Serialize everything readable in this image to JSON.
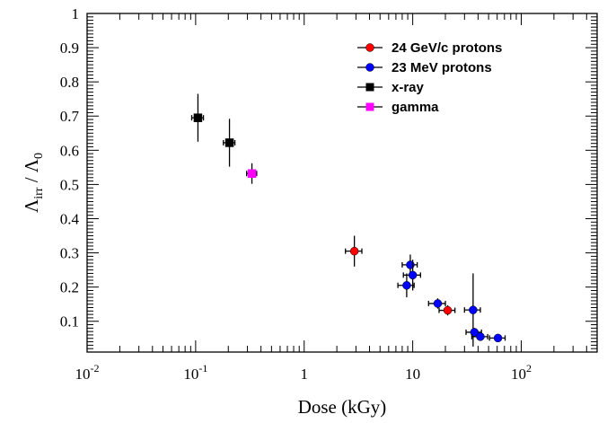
{
  "chart_data": {
    "type": "scatter",
    "xlabel": "Dose (kGy)",
    "ylabel": {
      "main": "Λ",
      "sub1": "irr",
      "mid": " / Λ",
      "sub2": "0"
    },
    "x_scale": "log",
    "xlim": [
      0.01,
      500
    ],
    "ylim": [
      0.01,
      1.0
    ],
    "x_ticks": [
      {
        "value": 0.01,
        "base": "10",
        "exp": "-2"
      },
      {
        "value": 0.1,
        "base": "10",
        "exp": "-1"
      },
      {
        "value": 1,
        "base": "1",
        "exp": ""
      },
      {
        "value": 10,
        "base": "10",
        "exp": ""
      },
      {
        "value": 100,
        "base": "10",
        "exp": "2"
      }
    ],
    "y_ticks": [
      {
        "value": 0.1,
        "label": "0.1"
      },
      {
        "value": 0.2,
        "label": "0.2"
      },
      {
        "value": 0.3,
        "label": "0.3"
      },
      {
        "value": 0.4,
        "label": "0.4"
      },
      {
        "value": 0.5,
        "label": "0.5"
      },
      {
        "value": 0.6,
        "label": "0.6"
      },
      {
        "value": 0.7,
        "label": "0.7"
      },
      {
        "value": 0.8,
        "label": "0.8"
      },
      {
        "value": 0.9,
        "label": "0.9"
      },
      {
        "value": 1.0,
        "label": "1"
      }
    ],
    "grid": false,
    "legend_position": "top-right",
    "series": [
      {
        "name": "24 GeV/c protons",
        "color": "#ff0000",
        "marker": "circle",
        "points": [
          {
            "x": 2.9,
            "y": 0.305,
            "xerr": 0.5,
            "yerr": 0.045
          },
          {
            "x": 21,
            "y": 0.132,
            "xerr": 3.5,
            "yerr": 0.015
          }
        ]
      },
      {
        "name": "23 MeV protons",
        "color": "#0000ff",
        "marker": "circle",
        "points": [
          {
            "x": 8.8,
            "y": 0.205,
            "xerr": 1.5,
            "yerr": 0.035
          },
          {
            "x": 9.5,
            "y": 0.265,
            "xerr": 1.5,
            "yerr": 0.03
          },
          {
            "x": 10,
            "y": 0.235,
            "xerr": 1.8,
            "yerr": 0.045
          },
          {
            "x": 17,
            "y": 0.152,
            "xerr": 3,
            "yerr": 0.015
          },
          {
            "x": 36,
            "y": 0.133,
            "xerr": 6,
            "yerr": 0.107
          },
          {
            "x": 37,
            "y": 0.068,
            "xerr": 6,
            "yerr": 0.012
          },
          {
            "x": 42,
            "y": 0.055,
            "xerr": 7,
            "yerr": 0.01
          },
          {
            "x": 61,
            "y": 0.051,
            "xerr": 10,
            "yerr": 0.008
          }
        ]
      },
      {
        "name": "x-ray",
        "color": "#000000",
        "marker": "square",
        "points": [
          {
            "x": 0.105,
            "y": 0.695,
            "xerr": 0.013,
            "yerr": 0.07
          },
          {
            "x": 0.205,
            "y": 0.622,
            "xerr": 0.025,
            "yerr": 0.07
          }
        ]
      },
      {
        "name": "gamma",
        "color": "#ff00ff",
        "marker": "square",
        "points": [
          {
            "x": 0.33,
            "y": 0.532,
            "xerr": 0.035,
            "yerr": 0.03
          }
        ]
      }
    ]
  }
}
